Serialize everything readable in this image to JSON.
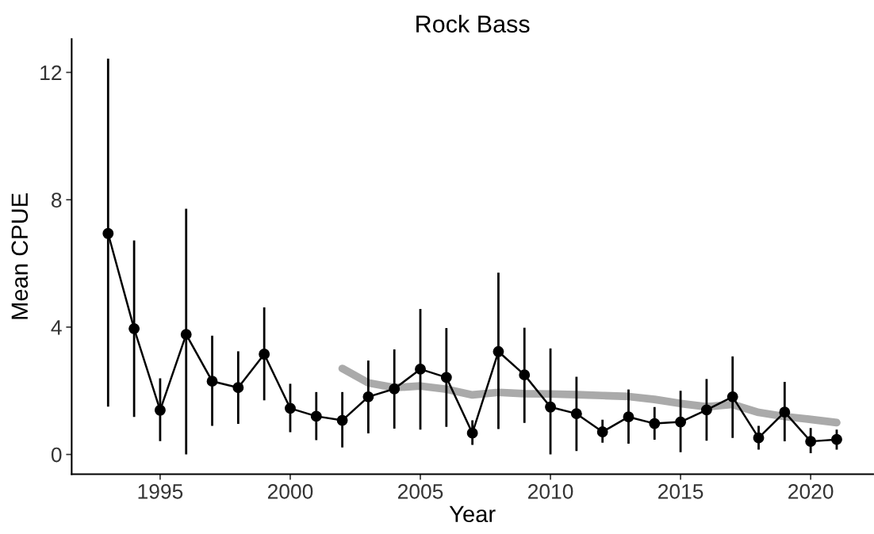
{
  "chart_data": {
    "type": "line",
    "title": "Rock Bass",
    "xlabel": "Year",
    "ylabel": "Mean CPUE",
    "xlim": [
      1991.6,
      2022.4
    ],
    "xticks": [
      1995,
      2000,
      2005,
      2010,
      2015,
      2020
    ],
    "ylim": [
      -0.62,
      13.05
    ],
    "yticks": [
      0,
      4,
      8,
      12
    ],
    "grid": false,
    "series": [
      {
        "color": "#aaaaaa",
        "marker": "none",
        "x": [
          2002,
          2003,
          2004,
          2005,
          2006,
          2007,
          2008,
          2009,
          2010,
          2011,
          2012,
          2013,
          2014,
          2015,
          2016,
          2017,
          2018,
          2019,
          2020,
          2021
        ],
        "values": [
          2.7,
          2.25,
          2.1,
          2.15,
          2.05,
          1.87,
          1.95,
          1.91,
          1.9,
          1.88,
          1.85,
          1.82,
          1.73,
          1.6,
          1.5,
          1.57,
          1.32,
          1.19,
          1.1,
          1.0
        ]
      },
      {
        "color": "#000000",
        "marker": "circle",
        "x": [
          1993,
          1994,
          1995,
          1996,
          1997,
          1998,
          1999,
          2000,
          2001,
          2002,
          2003,
          2004,
          2005,
          2006,
          2007,
          2008,
          2009,
          2010,
          2011,
          2012,
          2013,
          2014,
          2015,
          2016,
          2017,
          2018,
          2019,
          2020,
          2021
        ],
        "values": [
          6.94,
          3.95,
          1.39,
          3.77,
          2.3,
          2.1,
          3.15,
          1.45,
          1.2,
          1.07,
          1.81,
          2.06,
          2.68,
          2.42,
          0.67,
          3.23,
          2.5,
          1.49,
          1.28,
          0.71,
          1.18,
          0.97,
          1.02,
          1.4,
          1.81,
          0.52,
          1.33,
          0.41,
          0.47
        ],
        "errors": [
          [
            1.5,
            12.43
          ],
          [
            1.18,
            6.72
          ],
          [
            0.42,
            2.39
          ],
          [
            0.0,
            7.72
          ],
          [
            0.9,
            3.73
          ],
          [
            0.96,
            3.24
          ],
          [
            1.7,
            4.62
          ],
          [
            0.7,
            2.22
          ],
          [
            0.45,
            1.96
          ],
          [
            0.22,
            1.96
          ],
          [
            0.66,
            2.95
          ],
          [
            0.81,
            3.3
          ],
          [
            0.78,
            4.57
          ],
          [
            0.87,
            3.97
          ],
          [
            0.3,
            1.07
          ],
          [
            0.8,
            5.71
          ],
          [
            0.99,
            3.98
          ],
          [
            0.0,
            3.33
          ],
          [
            0.11,
            2.44
          ],
          [
            0.37,
            1.09
          ],
          [
            0.34,
            2.04
          ],
          [
            0.46,
            1.49
          ],
          [
            0.07,
            2.0
          ],
          [
            0.43,
            2.37
          ],
          [
            0.52,
            3.08
          ],
          [
            0.15,
            0.9
          ],
          [
            0.41,
            2.28
          ],
          [
            0.04,
            0.83
          ],
          [
            0.15,
            0.78
          ]
        ]
      }
    ]
  }
}
